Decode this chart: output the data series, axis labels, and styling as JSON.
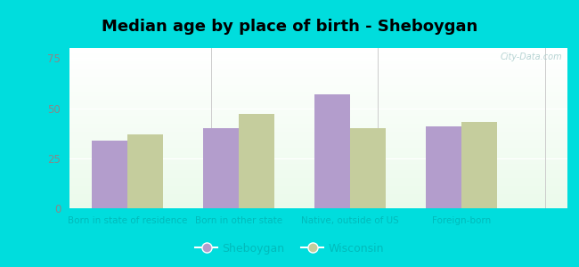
{
  "title": "Median age by place of birth - Sheboygan",
  "categories": [
    "Born in state of residence",
    "Born in other state",
    "Native, outside of US",
    "Foreign-born"
  ],
  "sheboygan_values": [
    34,
    40,
    57,
    41
  ],
  "wisconsin_values": [
    37,
    47,
    40,
    43
  ],
  "sheboygan_color": "#b39dcc",
  "wisconsin_color": "#c5cd9d",
  "ylim": [
    0,
    80
  ],
  "yticks": [
    0,
    25,
    50,
    75
  ],
  "bar_width": 0.32,
  "background_outer": "#00dddd",
  "legend_sheboygan": "Sheboygan",
  "legend_wisconsin": "Wisconsin",
  "title_fontsize": 13,
  "tick_label_color": "#00bbbb",
  "ytick_color": "#888888",
  "watermark": "City-Data.com",
  "watermark_color": "#aacccc"
}
